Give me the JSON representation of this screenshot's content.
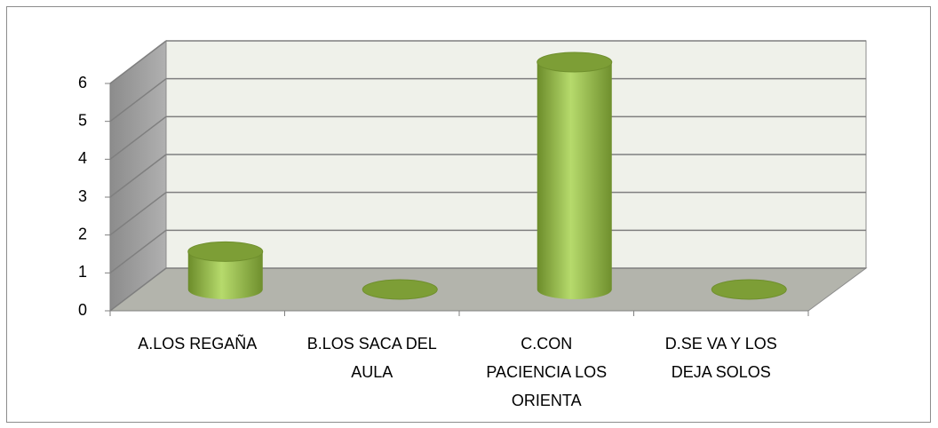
{
  "chart_data": {
    "type": "bar3d",
    "categories": [
      "A.LOS REGAÑA",
      "B.LOS SACA DEL AULA",
      "C.CON PACIENCIA LOS ORIENTA",
      "D.SE VA Y LOS DEJA SOLOS"
    ],
    "values": [
      1,
      0,
      6,
      0
    ],
    "color": "#8fb543",
    "ylim": [
      0,
      6
    ],
    "yticks": [
      0,
      1,
      2,
      3,
      4,
      5,
      6
    ],
    "grid": true
  }
}
